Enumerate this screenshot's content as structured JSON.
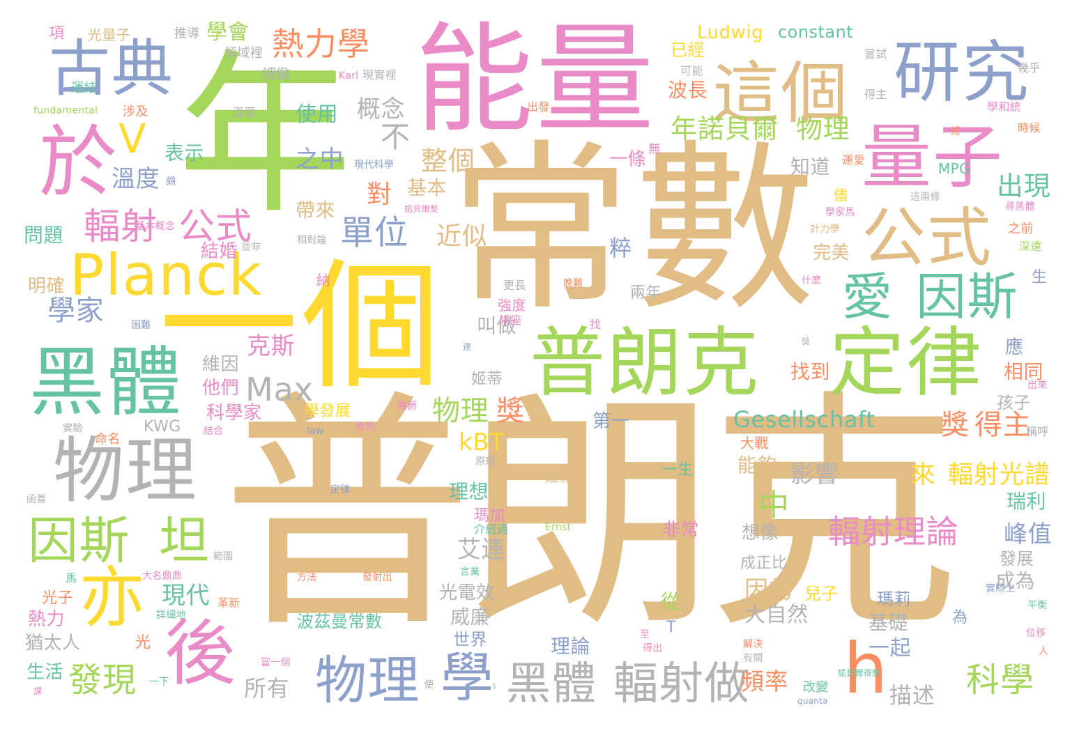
{
  "palette": {
    "tan": "#E2BC85",
    "green": "#A4D65A",
    "pink": "#E98BC6",
    "yellow": "#FFD92F",
    "teal": "#66C2A5",
    "blue": "#8DA0CB",
    "gray": "#B3B3B3",
    "orange": "#FC8D62"
  },
  "words": [
    {
      "text": "普朗克",
      "color": "tan"
    },
    {
      "text": "常數",
      "color": "tan"
    },
    {
      "text": "年",
      "color": "green"
    },
    {
      "text": "一個",
      "color": "yellow"
    },
    {
      "text": "能量",
      "color": "pink"
    },
    {
      "text": "普朗克",
      "color": "green"
    },
    {
      "text": "定律",
      "color": "green"
    },
    {
      "text": "黑體",
      "color": "teal"
    },
    {
      "text": "Planck",
      "color": "yellow"
    },
    {
      "text": "古典",
      "color": "blue"
    },
    {
      "text": "於",
      "color": "pink"
    },
    {
      "text": "研究",
      "color": "blue"
    },
    {
      "text": "這個",
      "color": "tan"
    },
    {
      "text": "量子",
      "color": "pink"
    },
    {
      "text": "公式",
      "color": "tan"
    },
    {
      "text": "愛",
      "color": "teal"
    },
    {
      "text": "因斯",
      "color": "teal"
    },
    {
      "text": "物理",
      "color": "gray"
    },
    {
      "text": "因斯",
      "color": "green"
    },
    {
      "text": "坦",
      "color": "green"
    },
    {
      "text": "後",
      "color": "pink"
    },
    {
      "text": "亦",
      "color": "yellow"
    },
    {
      "text": "物理",
      "color": "blue"
    },
    {
      "text": "學",
      "color": "blue"
    },
    {
      "text": "黑體",
      "color": "gray"
    },
    {
      "text": "輻射做",
      "color": "gray"
    },
    {
      "text": "h",
      "color": "orange"
    },
    {
      "text": "V",
      "color": "yellow"
    },
    {
      "text": "Max",
      "color": "gray"
    },
    {
      "text": "輻射",
      "color": "pink"
    },
    {
      "text": "公式",
      "color": "pink"
    },
    {
      "text": "熱力學",
      "color": "orange"
    },
    {
      "text": "年諾貝爾",
      "color": "green"
    },
    {
      "text": "物理",
      "color": "green"
    },
    {
      "text": "單位",
      "color": "blue"
    },
    {
      "text": "輻射理論",
      "color": "pink"
    },
    {
      "text": "科學",
      "color": "green"
    },
    {
      "text": "發現",
      "color": "green"
    },
    {
      "text": "學家",
      "color": "blue"
    },
    {
      "text": "溫度",
      "color": "blue"
    },
    {
      "text": "Gesellschaft",
      "color": "teal"
    },
    {
      "text": "kBT",
      "color": "yellow"
    },
    {
      "text": "物理",
      "color": "green"
    },
    {
      "text": "獎",
      "color": "orange"
    },
    {
      "text": "獎",
      "color": "orange"
    },
    {
      "text": "得主",
      "color": "orange"
    },
    {
      "text": "來",
      "color": "yellow"
    },
    {
      "text": "輻射光",
      "color": "yellow"
    },
    {
      "text": "譜",
      "color": "yellow"
    },
    {
      "text": "整個",
      "color": "tan"
    },
    {
      "text": "出現",
      "color": "teal"
    },
    {
      "text": "概念",
      "color": "gray"
    },
    {
      "text": "不",
      "color": "gray"
    },
    {
      "text": "之中",
      "color": "blue"
    },
    {
      "text": "使用",
      "color": "teal"
    },
    {
      "text": "學會",
      "color": "green"
    },
    {
      "text": "Ludwig",
      "color": "yellow"
    },
    {
      "text": "constant",
      "color": "teal"
    },
    {
      "text": "波長",
      "color": "orange"
    },
    {
      "text": "已經",
      "color": "yellow"
    },
    {
      "text": "一條",
      "color": "pink"
    },
    {
      "text": "知道",
      "color": "gray"
    },
    {
      "text": "近似",
      "color": "tan"
    },
    {
      "text": "對",
      "color": "orange"
    },
    {
      "text": "基本",
      "color": "tan"
    },
    {
      "text": "帶來",
      "color": "tan"
    },
    {
      "text": "表示",
      "color": "teal"
    },
    {
      "text": "克斯",
      "color": "pink"
    },
    {
      "text": "中",
      "color": "green"
    },
    {
      "text": "影響",
      "color": "gray"
    },
    {
      "text": "能夠",
      "color": "tan"
    },
    {
      "text": "理想",
      "color": "teal"
    },
    {
      "text": "瑪加",
      "color": "pink"
    },
    {
      "text": "艾連",
      "color": "gray"
    },
    {
      "text": "現代",
      "color": "teal"
    },
    {
      "text": "因為",
      "color": "tan"
    },
    {
      "text": "大自然",
      "color": "gray"
    },
    {
      "text": "一起",
      "color": "blue"
    },
    {
      "text": "描述",
      "color": "gray"
    },
    {
      "text": "頻率",
      "color": "orange"
    },
    {
      "text": "所有",
      "color": "gray"
    },
    {
      "text": "理論",
      "color": "blue"
    },
    {
      "text": "世界",
      "color": "blue"
    },
    {
      "text": "威廉",
      "color": "gray"
    },
    {
      "text": "光電效",
      "color": "gray"
    },
    {
      "text": "找到",
      "color": "orange"
    },
    {
      "text": "第一",
      "color": "blue"
    },
    {
      "text": "科學家",
      "color": "pink"
    },
    {
      "text": "他們",
      "color": "pink"
    },
    {
      "text": "維因",
      "color": "gray"
    },
    {
      "text": "結婚",
      "color": "pink"
    },
    {
      "text": "問題",
      "color": "teal"
    },
    {
      "text": "明確",
      "color": "tan"
    },
    {
      "text": "熱力",
      "color": "pink"
    },
    {
      "text": "光子",
      "color": "orange"
    },
    {
      "text": "猶太人",
      "color": "gray"
    },
    {
      "text": "生活",
      "color": "teal"
    },
    {
      "text": "峰值",
      "color": "blue"
    },
    {
      "text": "瑞利",
      "color": "teal"
    },
    {
      "text": "相同",
      "color": "orange"
    },
    {
      "text": "孩子",
      "color": "gray"
    },
    {
      "text": "發展",
      "color": "gray"
    },
    {
      "text": "成為",
      "color": "gray"
    },
    {
      "text": "基礎",
      "color": "gray"
    },
    {
      "text": "瑪莉",
      "color": "blue"
    },
    {
      "text": "兒子",
      "color": "yellow"
    },
    {
      "text": "非常",
      "color": "pink"
    },
    {
      "text": "想像",
      "color": "gray"
    },
    {
      "text": "成正比",
      "color": "gray"
    },
    {
      "text": "波茲曼常數",
      "color": "teal"
    },
    {
      "text": "叫做",
      "color": "gray"
    },
    {
      "text": "姬蒂",
      "color": "gray"
    },
    {
      "text": "學發展",
      "color": "yellow"
    },
    {
      "text": "KWG",
      "color": "gray"
    },
    {
      "text": "項",
      "color": "pink"
    },
    {
      "text": "光量子",
      "color": "tan"
    },
    {
      "text": "推導",
      "color": "gray"
    },
    {
      "text": "領域裡",
      "color": "gray"
    },
    {
      "text": "細緻",
      "color": "gray"
    },
    {
      "text": "運結",
      "color": "teal"
    },
    {
      "text": "fundamental",
      "color": "green"
    },
    {
      "text": "涉及",
      "color": "orange"
    },
    {
      "text": "溫習",
      "color": "gray"
    },
    {
      "text": "Karl",
      "color": "pink"
    },
    {
      "text": "現實裡",
      "color": "gray"
    },
    {
      "text": "可能",
      "color": "gray"
    },
    {
      "text": "嘗試",
      "color": "gray"
    },
    {
      "text": "幾乎",
      "color": "gray"
    },
    {
      "text": "得主",
      "color": "gray"
    },
    {
      "text": "學和統",
      "color": "pink"
    },
    {
      "text": "時候",
      "color": "orange"
    },
    {
      "text": "出發",
      "color": "orange"
    },
    {
      "text": "無",
      "color": "pink"
    },
    {
      "text": "現代科學",
      "color": "blue"
    },
    {
      "text": "MPG",
      "color": "teal"
    },
    {
      "text": "運愛",
      "color": "orange"
    },
    {
      "text": "儘",
      "color": "yellow"
    },
    {
      "text": "這兩條",
      "color": "gray"
    },
    {
      "text": "學家馬",
      "color": "pink"
    },
    {
      "text": "尋黑體",
      "color": "pink"
    },
    {
      "text": "之前",
      "color": "orange"
    },
    {
      "text": "深遠",
      "color": "green"
    },
    {
      "text": "計力學",
      "color": "tan"
    },
    {
      "text": "諾貝爾獎",
      "color": "pink"
    },
    {
      "text": "基本概念",
      "color": "pink"
    },
    {
      "text": "相對論",
      "color": "gray"
    },
    {
      "text": "並非",
      "color": "gray"
    },
    {
      "text": "納",
      "color": "pink"
    },
    {
      "text": "粹",
      "color": "blue"
    },
    {
      "text": "完美",
      "color": "tan"
    },
    {
      "text": "更長",
      "color": "gray"
    },
    {
      "text": "什麼",
      "color": "pink"
    },
    {
      "text": "強度",
      "color": "pink"
    },
    {
      "text": "講座",
      "color": "pink"
    },
    {
      "text": "困難",
      "color": "blue"
    },
    {
      "text": "找",
      "color": "pink"
    },
    {
      "text": "兩年",
      "color": "gray"
    },
    {
      "text": "生",
      "color": "blue"
    },
    {
      "text": "應",
      "color": "blue"
    },
    {
      "text": "稱呼",
      "color": "gray"
    },
    {
      "text": "出來",
      "color": "pink"
    },
    {
      "text": "實驗",
      "color": "gray"
    },
    {
      "text": "命名",
      "color": "orange"
    },
    {
      "text": "結合",
      "color": "pink"
    },
    {
      "text": "law",
      "color": "blue"
    },
    {
      "text": "致熱",
      "color": "pink"
    },
    {
      "text": "男爵",
      "color": "pink"
    },
    {
      "text": "大戰",
      "color": "orange"
    },
    {
      "text": "原理",
      "color": "gray"
    },
    {
      "text": "這就",
      "color": "tan"
    },
    {
      "text": "一生",
      "color": "teal"
    },
    {
      "text": "定律",
      "color": "blue"
    },
    {
      "text": "函蓋",
      "color": "gray"
    },
    {
      "text": "範圍",
      "color": "gray"
    },
    {
      "text": "大名鼎鼎",
      "color": "pink"
    },
    {
      "text": "方法",
      "color": "orange"
    },
    {
      "text": "言業",
      "color": "teal"
    },
    {
      "text": "發射出",
      "color": "orange"
    },
    {
      "text": "介紹過",
      "color": "teal"
    },
    {
      "text": "Ernst",
      "color": "green"
    },
    {
      "text": "馬",
      "color": "teal"
    },
    {
      "text": "革新",
      "color": "orange"
    },
    {
      "text": "詳細地",
      "color": "teal"
    },
    {
      "text": "光",
      "color": "orange"
    },
    {
      "text": "實際上",
      "color": "blue"
    },
    {
      "text": "平衡",
      "color": "teal"
    },
    {
      "text": "位移",
      "color": "pink"
    },
    {
      "text": "人",
      "color": "orange"
    },
    {
      "text": "得出",
      "color": "pink"
    },
    {
      "text": "解決",
      "color": "orange"
    },
    {
      "text": "有關",
      "color": "gray"
    },
    {
      "text": "諾貝爾得獎",
      "color": "teal"
    },
    {
      "text": "當一個",
      "color": "pink"
    },
    {
      "text": "一下",
      "color": "teal"
    },
    {
      "text": "使",
      "color": "gray"
    },
    {
      "text": "改變",
      "color": "teal"
    },
    {
      "text": "quanta",
      "color": "blue"
    },
    {
      "text": "為",
      "color": "blue"
    },
    {
      "text": "從",
      "color": "green"
    },
    {
      "text": "T",
      "color": "blue"
    },
    {
      "text": "課",
      "color": "pink"
    },
    {
      "text": "至",
      "color": "pink"
    },
    {
      "text": "短",
      "color": "orange"
    },
    {
      "text": "頗",
      "color": "blue"
    },
    {
      "text": "連",
      "color": "blue"
    },
    {
      "text": "獎",
      "color": "gray"
    },
    {
      "text": "s",
      "color": "gray"
    },
    {
      "text": "晚難",
      "color": "orange"
    }
  ]
}
